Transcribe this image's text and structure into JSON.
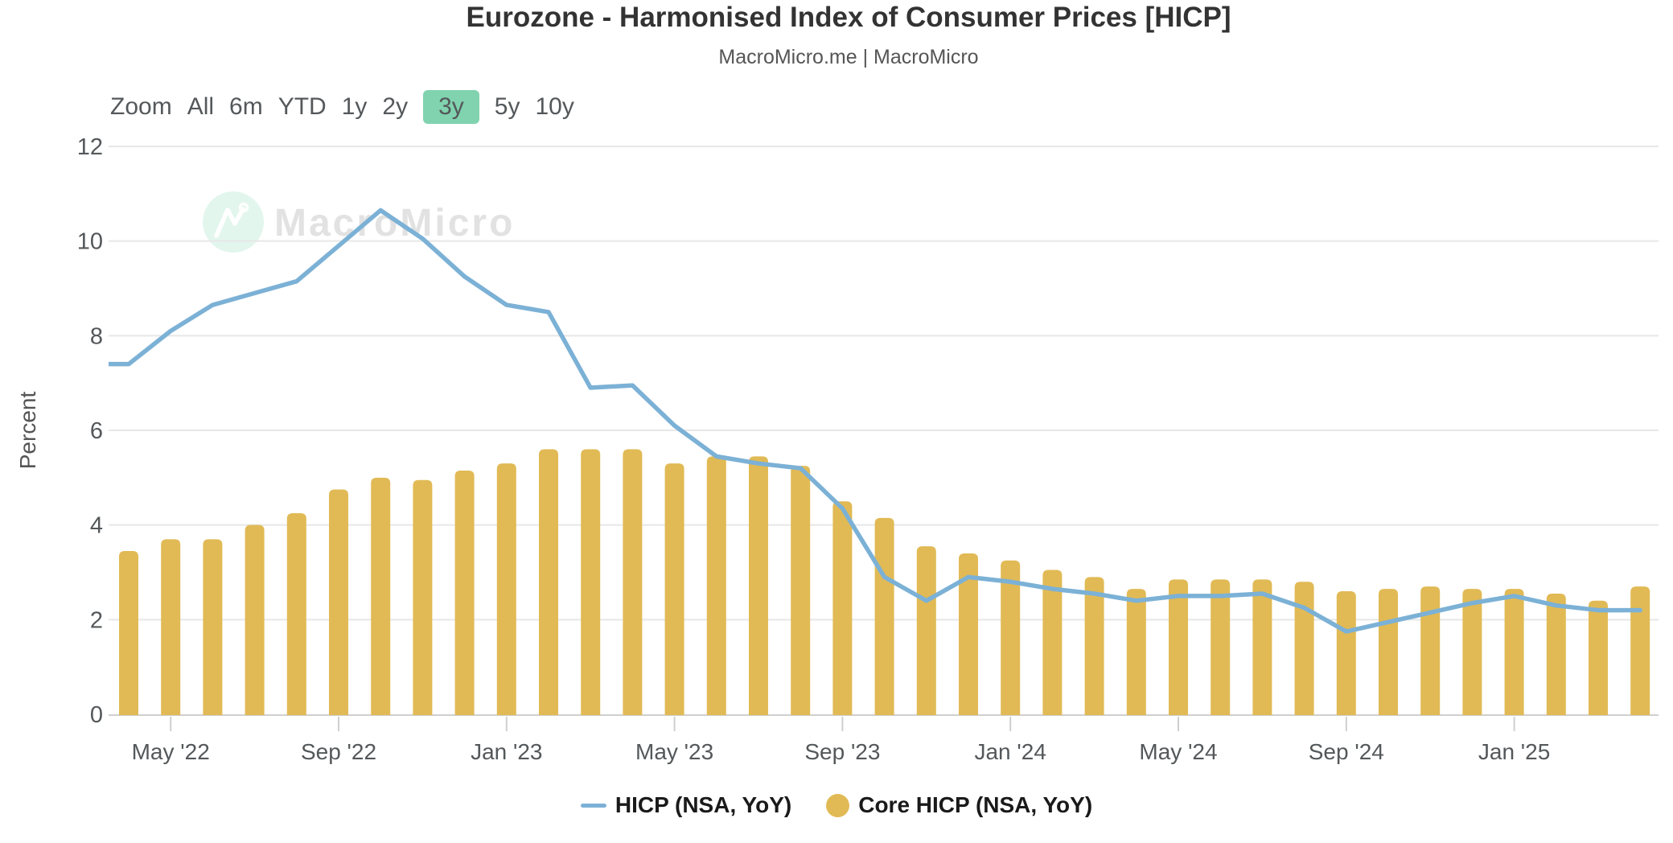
{
  "title": "Eurozone - Harmonised Index of Consumer Prices [HICP]",
  "subtitle": "MacroMicro.me | MacroMicro",
  "watermark": {
    "brand": "MacroMicro"
  },
  "toolbar": {
    "zoom_label": "Zoom",
    "ranges": [
      "All",
      "6m",
      "YTD",
      "1y",
      "2y",
      "3y",
      "5y",
      "10y"
    ],
    "active": "3y",
    "active_bg": "#80d3ae"
  },
  "y_axis": {
    "label": "Percent",
    "ticks": [
      0,
      2,
      4,
      6,
      8,
      10,
      12
    ],
    "min": 0,
    "max": 12
  },
  "x_axis": {
    "tick_labels": [
      "May '22",
      "Sep '22",
      "Jan '23",
      "May '23",
      "Sep '23",
      "Jan '24",
      "May '24",
      "Sep '24",
      "Jan '25"
    ]
  },
  "legend": [
    {
      "name": "HICP (NSA, YoY)",
      "marker": "line",
      "color": "#7cb1d6"
    },
    {
      "name": "Core HICP (NSA, YoY)",
      "marker": "circle",
      "color": "#e1ba55"
    }
  ],
  "chart_data": {
    "type": "combo",
    "months": [
      "Apr '22",
      "May '22",
      "Jun '22",
      "Jul '22",
      "Aug '22",
      "Sep '22",
      "Oct '22",
      "Nov '22",
      "Dec '22",
      "Jan '23",
      "Feb '23",
      "Mar '23",
      "Apr '23",
      "May '23",
      "Jun '23",
      "Jul '23",
      "Aug '23",
      "Sep '23",
      "Oct '23",
      "Nov '23",
      "Dec '23",
      "Jan '24",
      "Feb '24",
      "Mar '24",
      "Apr '24",
      "May '24",
      "Jun '24",
      "Jul '24",
      "Aug '24",
      "Sep '24",
      "Oct '24",
      "Nov '24",
      "Dec '24",
      "Jan '25",
      "Feb '25",
      "Mar '25",
      "Apr '25"
    ],
    "series": [
      {
        "name": "HICP (NSA, YoY)",
        "type": "line",
        "color": "#7cb1d6",
        "note": "first value is Mar '22, one month before first bar",
        "values": [
          7.4,
          7.4,
          8.1,
          8.65,
          8.9,
          9.15,
          9.9,
          10.65,
          10.05,
          9.25,
          8.65,
          8.5,
          6.9,
          6.95,
          6.1,
          5.45,
          5.3,
          5.2,
          4.35,
          2.9,
          2.4,
          2.9,
          2.8,
          2.65,
          2.55,
          2.4,
          2.5,
          2.5,
          2.55,
          2.25,
          1.75,
          1.95,
          2.15,
          2.35,
          2.5,
          2.3,
          2.2,
          2.2
        ]
      },
      {
        "name": "Core HICP (NSA, YoY)",
        "type": "bar",
        "color": "#e1ba55",
        "values": [
          3.45,
          3.7,
          3.7,
          4.0,
          4.25,
          4.75,
          5.0,
          4.95,
          5.15,
          5.3,
          5.6,
          5.6,
          5.6,
          5.3,
          5.45,
          5.45,
          5.25,
          4.5,
          4.15,
          3.55,
          3.4,
          3.25,
          3.05,
          2.9,
          2.65,
          2.85,
          2.85,
          2.85,
          2.8,
          2.6,
          2.65,
          2.7,
          2.65,
          2.65,
          2.55,
          2.4,
          2.7
        ]
      }
    ],
    "ylim": [
      0,
      12
    ],
    "grid": "horizontal",
    "legend_position": "bottom"
  },
  "colors": {
    "grid": "#e7e7e7",
    "axis": "#cfcfcf",
    "tick_text": "#54585a",
    "watermark_text": "#e2e2e2",
    "watermark_badge": "#e2f6ee"
  }
}
